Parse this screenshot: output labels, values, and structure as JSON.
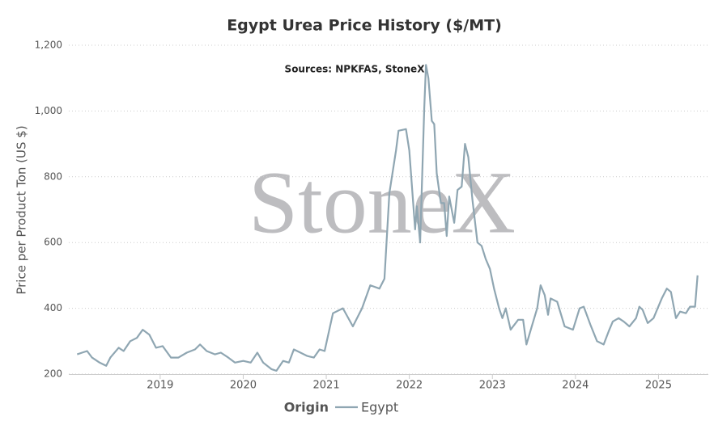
{
  "chart_data": {
    "type": "line",
    "title": "Egypt Urea Price History ($/MT)",
    "subtitle": "Sources: NPKFAS, StoneX",
    "watermark": "StoneX",
    "y_label": "Price per Product Ton (US $)",
    "legend_title": "Origin",
    "grid": true,
    "xlim": [
      2017.9,
      2025.6
    ],
    "xticks": [
      2019,
      2020,
      2021,
      2022,
      2023,
      2024,
      2025
    ],
    "ylim": [
      200,
      1200
    ],
    "yticks": [
      200,
      400,
      600,
      800,
      {
        "value": 1000,
        "label": "1,000"
      },
      {
        "value": 1200,
        "label": "1,200"
      }
    ],
    "x": [
      2018.0,
      2018.06,
      2018.12,
      2018.18,
      2018.27,
      2018.35,
      2018.4,
      2018.5,
      2018.56,
      2018.64,
      2018.72,
      2018.79,
      2018.87,
      2018.95,
      2019.03,
      2019.13,
      2019.22,
      2019.32,
      2019.42,
      2019.48,
      2019.56,
      2019.66,
      2019.73,
      2019.82,
      2019.9,
      2020.0,
      2020.09,
      2020.17,
      2020.24,
      2020.34,
      2020.4,
      2020.48,
      2020.55,
      2020.61,
      2020.69,
      2020.77,
      2020.85,
      2020.92,
      2020.98,
      2021.08,
      2021.2,
      2021.32,
      2021.43,
      2021.53,
      2021.64,
      2021.7,
      2021.76,
      2021.84,
      2021.87,
      2021.96,
      2022.0,
      2022.07,
      2022.09,
      2022.13,
      2022.18,
      2022.2,
      2022.23,
      2022.27,
      2022.3,
      2022.33,
      2022.38,
      2022.42,
      2022.45,
      2022.48,
      2022.54,
      2022.58,
      2022.63,
      2022.67,
      2022.71,
      2022.76,
      2022.82,
      2022.87,
      2022.92,
      2022.97,
      2023.02,
      2023.08,
      2023.12,
      2023.16,
      2023.22,
      2023.31,
      2023.37,
      2023.41,
      2023.48,
      2023.54,
      2023.58,
      2023.63,
      2023.67,
      2023.7,
      2023.78,
      2023.87,
      2023.97,
      2024.05,
      2024.1,
      2024.18,
      2024.26,
      2024.34,
      2024.4,
      2024.45,
      2024.52,
      2024.58,
      2024.65,
      2024.73,
      2024.77,
      2024.81,
      2024.87,
      2024.94,
      2024.99,
      2025.04,
      2025.1,
      2025.15,
      2025.21,
      2025.26,
      2025.33,
      2025.38,
      2025.44,
      2025.47
    ],
    "series": [
      {
        "name": "Egypt",
        "color": "#8fa6b2",
        "values": [
          260,
          265,
          270,
          250,
          235,
          225,
          250,
          280,
          270,
          300,
          310,
          335,
          320,
          280,
          285,
          250,
          250,
          265,
          275,
          290,
          270,
          260,
          265,
          250,
          235,
          240,
          235,
          265,
          235,
          215,
          210,
          240,
          235,
          275,
          265,
          255,
          250,
          275,
          270,
          385,
          400,
          345,
          400,
          470,
          460,
          490,
          750,
          880,
          940,
          945,
          880,
          640,
          710,
          600,
          1010,
          1140,
          1100,
          970,
          960,
          810,
          720,
          720,
          620,
          740,
          660,
          760,
          770,
          900,
          860,
          730,
          600,
          590,
          550,
          520,
          460,
          400,
          370,
          400,
          335,
          365,
          365,
          290,
          350,
          400,
          470,
          440,
          380,
          430,
          420,
          345,
          335,
          400,
          405,
          350,
          300,
          290,
          330,
          360,
          370,
          360,
          345,
          370,
          405,
          395,
          355,
          370,
          400,
          430,
          460,
          450,
          370,
          390,
          385,
          405,
          405,
          500
        ]
      }
    ]
  }
}
